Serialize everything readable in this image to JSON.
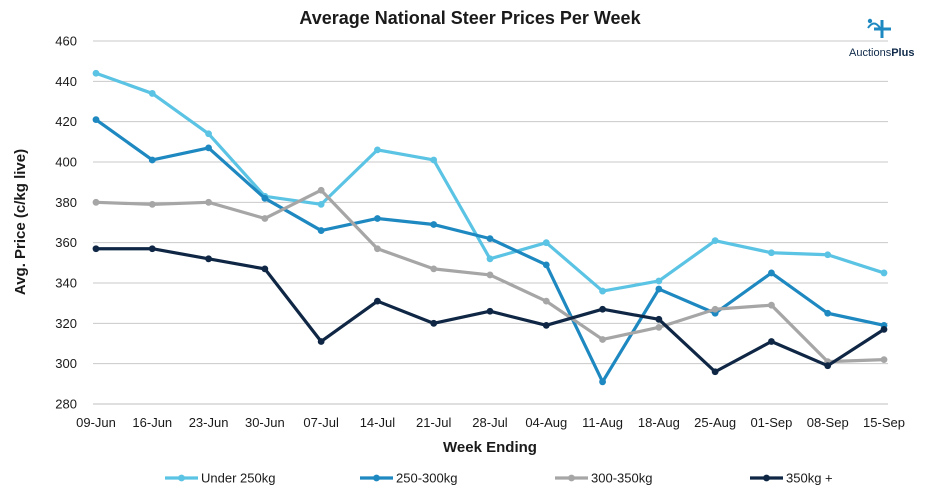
{
  "brand": {
    "name_prefix": "Auctions",
    "name_suffix": "Plus"
  },
  "chart_data": {
    "type": "line",
    "title": "Average National Steer Prices Per Week",
    "xlabel": "Week Ending",
    "ylabel": "Avg. Price (c/kg live)",
    "ylim": [
      280,
      460
    ],
    "yticks": [
      280,
      300,
      320,
      340,
      360,
      380,
      400,
      420,
      440,
      460
    ],
    "grid": true,
    "legend_position": "bottom",
    "categories": [
      "09-Jun",
      "16-Jun",
      "23-Jun",
      "30-Jun",
      "07-Jul",
      "14-Jul",
      "21-Jul",
      "28-Jul",
      "04-Aug",
      "11-Aug",
      "18-Aug",
      "25-Aug",
      "01-Sep",
      "08-Sep",
      "15-Sep"
    ],
    "series": [
      {
        "name": "Under 250kg",
        "color": "#5bc3e3",
        "values": [
          444,
          434,
          414,
          383,
          379,
          406,
          401,
          352,
          360,
          336,
          341,
          361,
          355,
          354,
          345
        ]
      },
      {
        "name": "250-300kg",
        "color": "#1e88c0",
        "values": [
          421,
          401,
          407,
          382,
          366,
          372,
          369,
          362,
          349,
          291,
          337,
          325,
          345,
          325,
          319
        ]
      },
      {
        "name": "300-350kg",
        "color": "#a6a6a6",
        "values": [
          380,
          379,
          380,
          372,
          386,
          357,
          347,
          344,
          331,
          312,
          318,
          327,
          329,
          301,
          302
        ]
      },
      {
        "name": "350kg +",
        "color": "#0f2745",
        "values": [
          357,
          357,
          352,
          347,
          311,
          331,
          320,
          326,
          319,
          327,
          322,
          296,
          311,
          299,
          317
        ]
      }
    ]
  }
}
